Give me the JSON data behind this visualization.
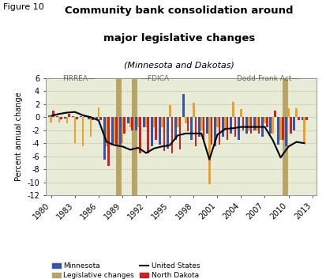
{
  "years": [
    1980,
    1981,
    1982,
    1983,
    1984,
    1985,
    1986,
    1987,
    1988,
    1989,
    1990,
    1991,
    1992,
    1993,
    1994,
    1995,
    1996,
    1997,
    1998,
    1999,
    2000,
    2001,
    2002,
    2003,
    2004,
    2005,
    2006,
    2007,
    2008,
    2009,
    2010,
    2011,
    2012
  ],
  "minnesota": [
    0.3,
    0.2,
    -0.2,
    0.2,
    0.1,
    -0.3,
    -0.5,
    -6.5,
    -4.3,
    -4.2,
    -1.0,
    -2.0,
    -1.5,
    -4.5,
    -4.2,
    -4.8,
    -3.5,
    3.5,
    -3.5,
    -3.0,
    -2.5,
    -4.5,
    -3.0,
    -2.5,
    -3.5,
    -2.5,
    -2.0,
    -3.0,
    -2.5,
    -4.2,
    -4.5,
    -2.0,
    -0.5
  ],
  "south_dakota": [
    -0.8,
    -0.8,
    -1.0,
    -4.0,
    -4.5,
    -3.0,
    1.5,
    -4.5,
    -4.0,
    -4.0,
    -1.5,
    -1.5,
    -1.5,
    -1.5,
    -1.5,
    1.8,
    -1.5,
    -1.0,
    2.2,
    -2.0,
    -10.3,
    -1.5,
    -2.0,
    2.3,
    1.2,
    -2.0,
    -2.0,
    -1.0,
    -2.5,
    -3.5,
    1.4,
    1.4,
    -4.0
  ],
  "north_dakota": [
    1.0,
    -0.3,
    0.5,
    -0.3,
    0.2,
    -0.5,
    -0.5,
    -7.5,
    -4.2,
    -2.5,
    -2.0,
    -5.5,
    -5.5,
    -3.5,
    -5.2,
    -5.5,
    -5.0,
    -2.2,
    -4.5,
    -3.5,
    -4.2,
    -4.2,
    -3.5,
    -3.0,
    -2.0,
    -2.5,
    -2.5,
    -1.5,
    1.0,
    -3.5,
    -2.5,
    -0.5,
    -0.5
  ],
  "us_line": [
    0.2,
    0.5,
    0.7,
    0.8,
    0.3,
    0.0,
    -0.5,
    -3.8,
    -4.3,
    -4.5,
    -5.0,
    -4.7,
    -5.5,
    -4.8,
    -4.5,
    -4.3,
    -2.8,
    -2.5,
    -2.5,
    -2.5,
    -6.5,
    -2.7,
    -1.8,
    -1.7,
    -1.5,
    -1.5,
    -1.5,
    -1.5,
    -3.5,
    -6.2,
    -4.5,
    -3.8,
    -4.0
  ],
  "bg_color": "#e8ecd6",
  "bar_width": 0.27,
  "mn_color": "#3355aa",
  "sd_color": "#e8a030",
  "nd_color": "#cc2222",
  "us_color": "#000000",
  "leg_color": "#b8a465",
  "title_line1": "Community bank consolidation around",
  "title_line2": "major legislative changes",
  "subtitle": "(Minnesota and Dakotas)",
  "figure_label": "Figure 10",
  "ylabel": "Percent annual change",
  "ylim": [
    -12,
    6
  ],
  "yticks": [
    -12,
    -10,
    -8,
    -6,
    -4,
    -2,
    0,
    2,
    4,
    6
  ],
  "xtick_years": [
    1980,
    1983,
    1986,
    1989,
    1992,
    1995,
    1998,
    2001,
    2004,
    2007,
    2010,
    2013
  ],
  "leg_lines": [
    1988.5,
    1990.5,
    2009.5
  ],
  "firrea_text": "FIRREA—",
  "firrea_x": 1983.5,
  "fdica_text": "—FDICA",
  "fdica_x": 1991.3,
  "doddfrank_text": "Dodd-Frank Act—",
  "doddfrank_x": 2003.5,
  "anno_y": 5.4,
  "anno_color": "#666655",
  "anno_fontsize": 6.5,
  "title_fontsize": 9.5,
  "subtitle_fontsize": 8,
  "figlabel_fontsize": 8,
  "ylabel_fontsize": 7,
  "tick_fontsize": 7,
  "legend_fontsize": 6.5
}
